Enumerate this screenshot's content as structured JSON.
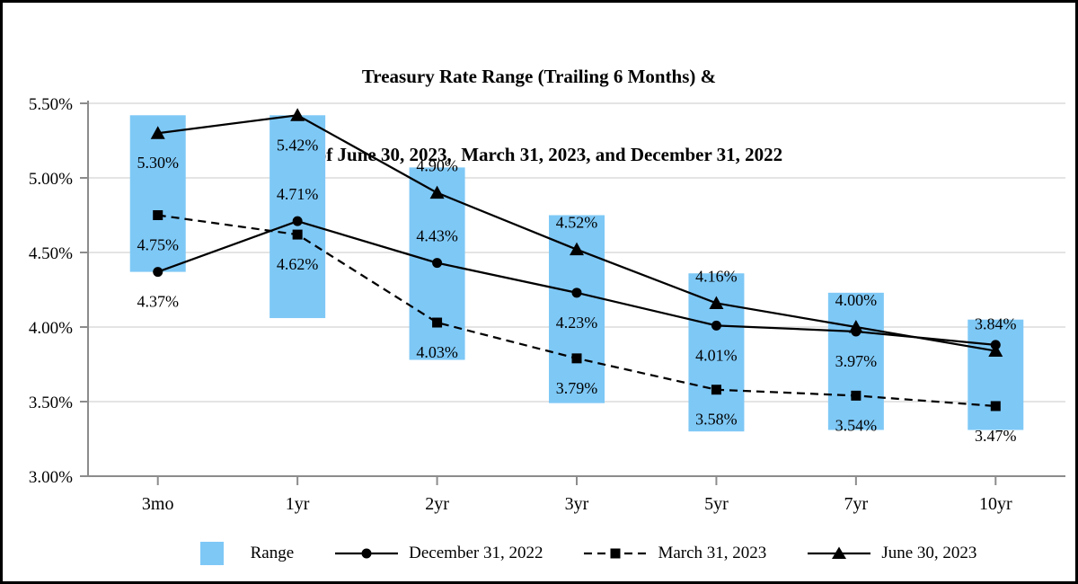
{
  "title": {
    "line1": "Treasury Rate Range (Trailing 6 Months) &",
    "line2": "as of June 30, 2023,  March 31, 2023, and December 31, 2022"
  },
  "chart_data": {
    "type": "line",
    "subtype": "range-bars-with-line-series",
    "title": "Treasury Rate Range (Trailing 6 Months) & as of June 30, 2023,  March 31, 2023, and December 31, 2022",
    "categories": [
      "3mo",
      "1yr",
      "2yr",
      "3yr",
      "5yr",
      "7yr",
      "10yr"
    ],
    "y_axis": {
      "min": 3.0,
      "max": 5.5,
      "tick_step": 0.5,
      "tick_labels": [
        "5.50%",
        "5.00%",
        "4.50%",
        "4.00%",
        "3.50%",
        "3.00%"
      ],
      "grid": true
    },
    "range_bars": {
      "legend_label": "Range",
      "color": "#7EC8F6",
      "low": [
        4.37,
        4.06,
        3.78,
        3.49,
        3.3,
        3.31,
        3.31
      ],
      "high": [
        5.42,
        5.42,
        5.07,
        4.75,
        4.36,
        4.23,
        4.05
      ]
    },
    "series": [
      {
        "name": "December 31, 2022",
        "marker": "circle",
        "line_style": "solid",
        "color": "#000000",
        "values": [
          4.37,
          4.71,
          4.43,
          4.23,
          4.01,
          3.97,
          3.88
        ],
        "labels": [
          "4.37%",
          "4.71%",
          "4.43%",
          "4.23%",
          "4.01%",
          "3.97%",
          ""
        ],
        "label_placement": [
          "below",
          "above",
          "above",
          "below",
          "below",
          "below",
          "none"
        ]
      },
      {
        "name": "March 31, 2023",
        "marker": "square",
        "line_style": "dashed",
        "color": "#000000",
        "values": [
          4.75,
          4.62,
          4.03,
          3.79,
          3.58,
          3.54,
          3.47
        ],
        "labels": [
          "4.75%",
          "4.62%",
          "4.03%",
          "3.79%",
          "3.58%",
          "3.54%",
          "3.47%"
        ],
        "label_placement": [
          "below",
          "below",
          "below",
          "below",
          "below",
          "below",
          "below"
        ]
      },
      {
        "name": "June 30, 2023",
        "marker": "triangle",
        "line_style": "solid",
        "color": "#000000",
        "values": [
          5.3,
          5.42,
          4.9,
          4.52,
          4.16,
          4.0,
          3.84
        ],
        "labels": [
          "5.30%",
          "5.42%",
          "4.90%",
          "4.52%",
          "4.16%",
          "4.00%",
          "3.84%"
        ],
        "label_placement": [
          "below",
          "below",
          "above",
          "above",
          "above",
          "above",
          "above"
        ]
      }
    ],
    "colors": {
      "bar": "#7EC8F6",
      "line": "#000000",
      "gridline": "#DCDCDC",
      "axis": "#8C8C8C",
      "text": "#000000"
    },
    "legend_position": "bottom"
  }
}
